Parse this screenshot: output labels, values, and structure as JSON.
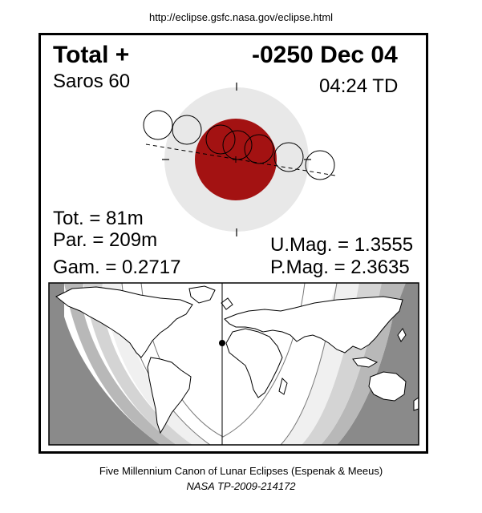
{
  "source_url": "http://eclipse.gsfc.nasa.gov/eclipse.html",
  "eclipse": {
    "type_label": "Total  +",
    "date": "-0250 Dec 04",
    "saros": "Saros  60",
    "time": "04:24 TD"
  },
  "stats": {
    "total": "Tot. =  81m",
    "partial": "Par. = 209m",
    "gamma": "Gam. = 0.2717",
    "umbral_mag": "U.Mag. = 1.3555",
    "penumbral_mag": "P.Mag. = 2.3635"
  },
  "footer": {
    "canon": "Five Millennium Canon of Lunar Eclipses (Espenak & Meeus)",
    "publication": "NASA TP-2009-214172"
  },
  "colors": {
    "umbra": "#a31212",
    "penumbra": "#e8e8e8",
    "night": "#8a8a8a",
    "zone_light": "#f0f0f0",
    "zone_mid": "#d4d4d4",
    "zone_dark": "#b8b8b8"
  }
}
